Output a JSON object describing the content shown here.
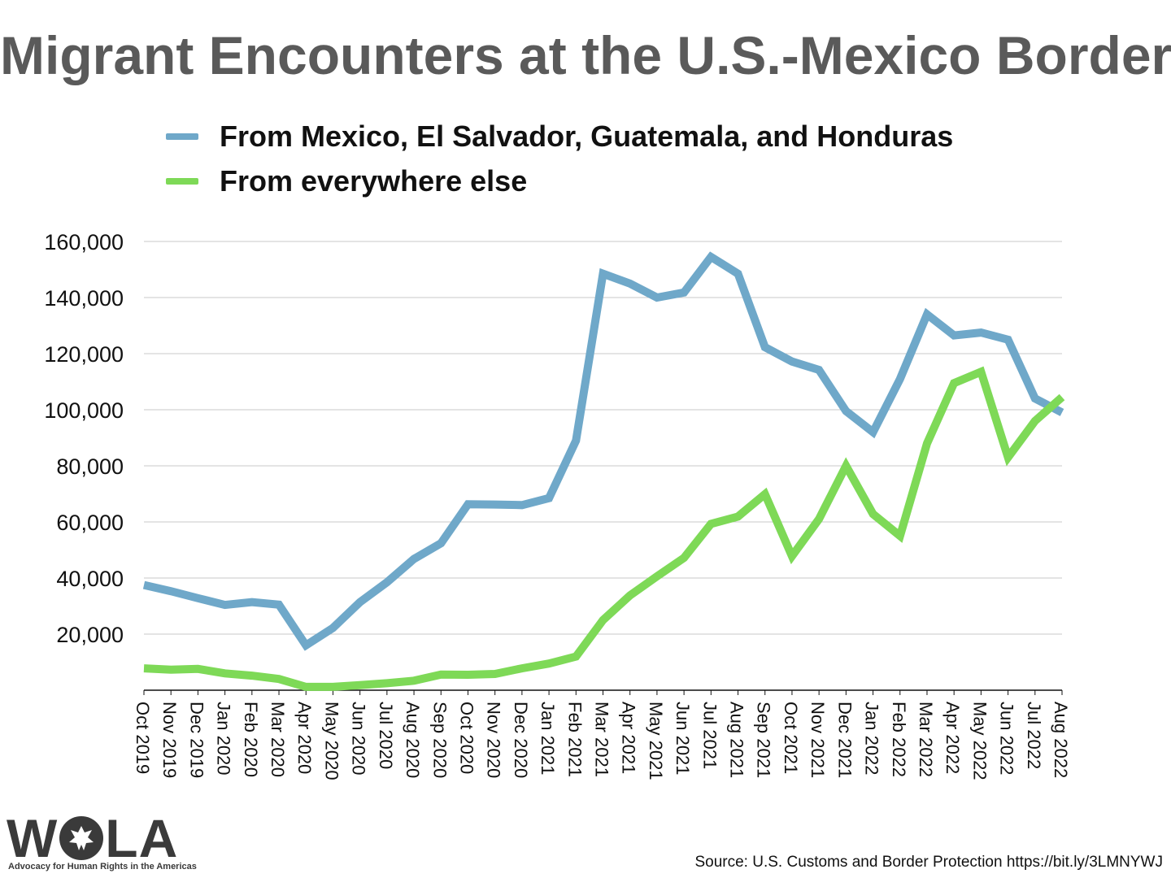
{
  "title": "Migrant Encounters at the U.S.-Mexico Border",
  "source": "Source: U.S. Customs and Border Protection https://bit.ly/3LMNYWJ",
  "logo": {
    "text": "WOLA",
    "tagline": "Advocacy for Human Rights in the Americas"
  },
  "colors": {
    "series_1": "#6fa8c9",
    "series_2": "#7ed957",
    "title": "#5a5a5a",
    "gridline": "#c8c8c8"
  },
  "chart_data": {
    "type": "line",
    "title": "Migrant Encounters at the U.S.-Mexico Border",
    "xlabel": "",
    "ylabel": "",
    "ylim": [
      0,
      160000
    ],
    "yticks": [
      20000,
      40000,
      60000,
      80000,
      100000,
      120000,
      140000,
      160000
    ],
    "ytick_labels": [
      "20,000",
      "40,000",
      "60,000",
      "80,000",
      "100,000",
      "120,000",
      "140,000",
      "160,000"
    ],
    "grid": true,
    "legend_position": "top",
    "categories": [
      "Oct 2019",
      "Nov 2019",
      "Dec 2019",
      "Jan 2020",
      "Feb 2020",
      "Mar 2020",
      "Apr 2020",
      "May 2020",
      "Jun 2020",
      "Jul 2020",
      "Aug 2020",
      "Sep 2020",
      "Oct 2020",
      "Nov 2020",
      "Dec 2020",
      "Jan 2021",
      "Feb 2021",
      "Mar 2021",
      "Apr 2021",
      "May 2021",
      "Jun 2021",
      "Jul 2021",
      "Aug 2021",
      "Sep 2021",
      "Oct 2021",
      "Nov 2021",
      "Dec 2021",
      "Jan 2022",
      "Feb 2022",
      "Mar 2022",
      "Apr 2022",
      "May 2022",
      "Jun 2022",
      "Jul 2022",
      "Aug 2022"
    ],
    "series": [
      {
        "name": "From Mexico, El Salvador, Guatemala, and Honduras",
        "color": "#6fa8c9",
        "values": [
          37500,
          35300,
          32800,
          30400,
          31400,
          30500,
          16000,
          22200,
          31400,
          38500,
          46800,
          52400,
          66300,
          66200,
          66000,
          68500,
          89000,
          148500,
          145000,
          140000,
          141800,
          154500,
          148500,
          122300,
          117200,
          114200,
          99500,
          92000,
          111000,
          134000,
          126500,
          127500,
          125000,
          104000,
          99000
        ]
      },
      {
        "name": "From everywhere else",
        "color": "#7ed957",
        "values": [
          7800,
          7300,
          7600,
          6000,
          5200,
          4000,
          1200,
          1200,
          1800,
          2500,
          3400,
          5600,
          5500,
          5800,
          7800,
          9500,
          12000,
          25000,
          33800,
          40600,
          47200,
          59300,
          61900,
          69900,
          47800,
          61000,
          80000,
          62800,
          55000,
          88000,
          109500,
          113500,
          83000,
          96000,
          104500
        ]
      }
    ]
  }
}
